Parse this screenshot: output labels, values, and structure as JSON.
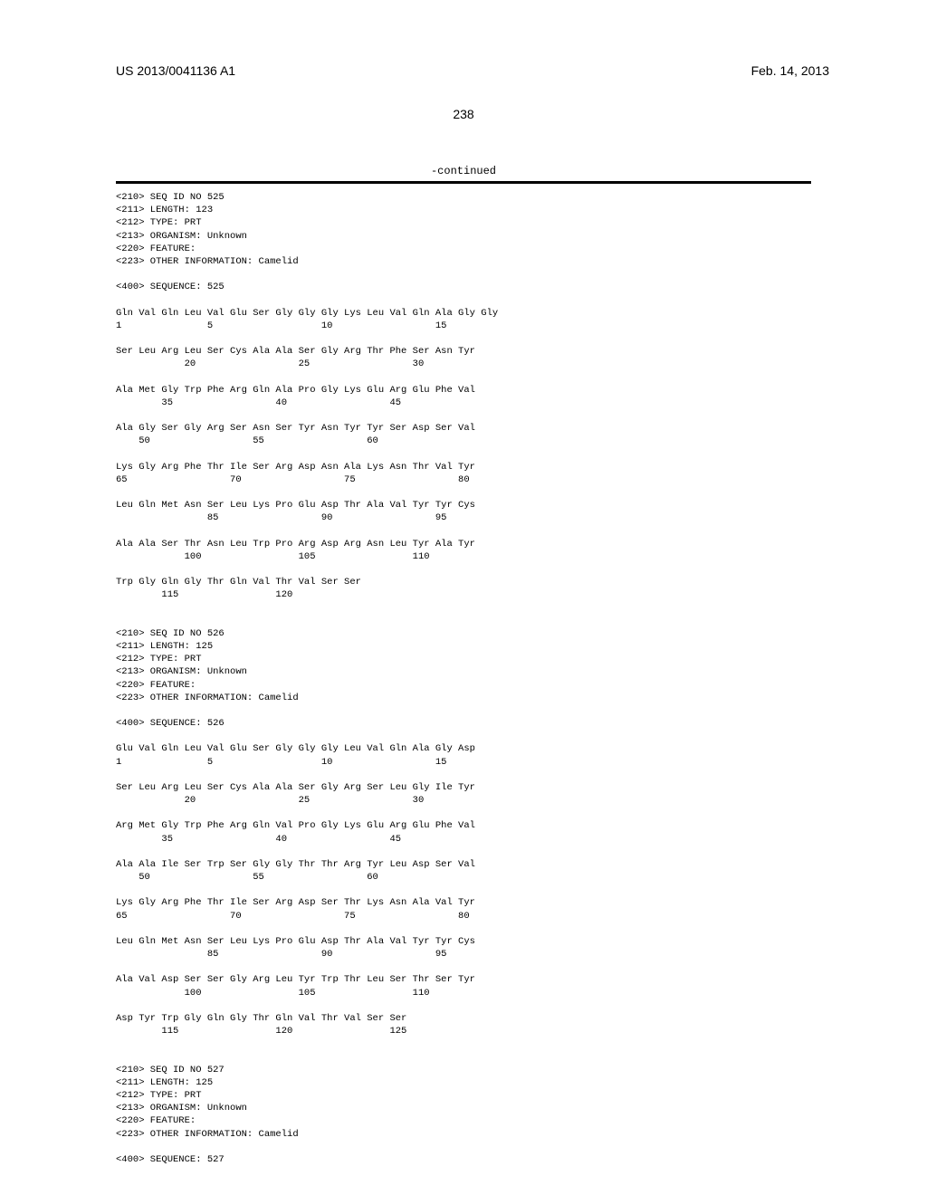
{
  "header": {
    "patent_id": "US 2013/0041136 A1",
    "date": "Feb. 14, 2013",
    "page_number": "238",
    "continued": "-continued"
  },
  "sequences": [
    {
      "id": "525",
      "length": "123",
      "type": "PRT",
      "organism": "Unknown",
      "feature": "",
      "other_info": "Camelid",
      "sequence_label": "525",
      "rows": [
        {
          "aa": "Gln Val Gln Leu Val Glu Ser Gly Gly Gly Lys Leu Val Gln Ala Gly Gly",
          "nums": "1               5                   10                  15"
        },
        {
          "aa": "Ser Leu Arg Leu Ser Cys Ala Ala Ser Gly Arg Thr Phe Ser Asn Tyr",
          "nums": "            20                  25                  30"
        },
        {
          "aa": "Ala Met Gly Trp Phe Arg Gln Ala Pro Gly Lys Glu Arg Glu Phe Val",
          "nums": "        35                  40                  45"
        },
        {
          "aa": "Ala Gly Ser Gly Arg Ser Asn Ser Tyr Asn Tyr Tyr Ser Asp Ser Val",
          "nums": "    50                  55                  60"
        },
        {
          "aa": "Lys Gly Arg Phe Thr Ile Ser Arg Asp Asn Ala Lys Asn Thr Val Tyr",
          "nums": "65                  70                  75                  80"
        },
        {
          "aa": "Leu Gln Met Asn Ser Leu Lys Pro Glu Asp Thr Ala Val Tyr Tyr Cys",
          "nums": "                85                  90                  95"
        },
        {
          "aa": "Ala Ala Ser Thr Asn Leu Trp Pro Arg Asp Arg Asn Leu Tyr Ala Tyr",
          "nums": "            100                 105                 110"
        },
        {
          "aa": "Trp Gly Gln Gly Thr Gln Val Thr Val Ser Ser",
          "nums": "        115                 120"
        }
      ]
    },
    {
      "id": "526",
      "length": "125",
      "type": "PRT",
      "organism": "Unknown",
      "feature": "",
      "other_info": "Camelid",
      "sequence_label": "526",
      "rows": [
        {
          "aa": "Glu Val Gln Leu Val Glu Ser Gly Gly Gly Leu Val Gln Ala Gly Asp",
          "nums": "1               5                   10                  15"
        },
        {
          "aa": "Ser Leu Arg Leu Ser Cys Ala Ala Ser Gly Arg Ser Leu Gly Ile Tyr",
          "nums": "            20                  25                  30"
        },
        {
          "aa": "Arg Met Gly Trp Phe Arg Gln Val Pro Gly Lys Glu Arg Glu Phe Val",
          "nums": "        35                  40                  45"
        },
        {
          "aa": "Ala Ala Ile Ser Trp Ser Gly Gly Thr Thr Arg Tyr Leu Asp Ser Val",
          "nums": "    50                  55                  60"
        },
        {
          "aa": "Lys Gly Arg Phe Thr Ile Ser Arg Asp Ser Thr Lys Asn Ala Val Tyr",
          "nums": "65                  70                  75                  80"
        },
        {
          "aa": "Leu Gln Met Asn Ser Leu Lys Pro Glu Asp Thr Ala Val Tyr Tyr Cys",
          "nums": "                85                  90                  95"
        },
        {
          "aa": "Ala Val Asp Ser Ser Gly Arg Leu Tyr Trp Thr Leu Ser Thr Ser Tyr",
          "nums": "            100                 105                 110"
        },
        {
          "aa": "Asp Tyr Trp Gly Gln Gly Thr Gln Val Thr Val Ser Ser",
          "nums": "        115                 120                 125"
        }
      ]
    },
    {
      "id": "527",
      "length": "125",
      "type": "PRT",
      "organism": "Unknown",
      "feature": "",
      "other_info": "Camelid",
      "sequence_label": "527",
      "rows": []
    }
  ],
  "tags": {
    "seq_id": "<210> SEQ ID NO ",
    "length": "<211> LENGTH: ",
    "type": "<212> TYPE: ",
    "organism": "<213> ORGANISM: ",
    "feature": "<220> FEATURE:",
    "other_info": "<223> OTHER INFORMATION: ",
    "sequence": "<400> SEQUENCE: "
  }
}
